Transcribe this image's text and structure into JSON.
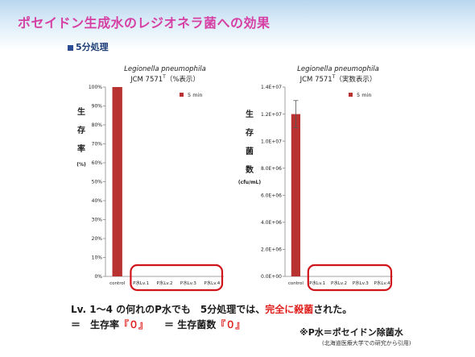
{
  "header": {
    "title": "ポセイドン生成水のレジオネラ菌への効果",
    "subtitle": "5分処理"
  },
  "charts": [
    {
      "organism": "Legionella pneumophila",
      "strain": "JCM 7571",
      "strain_sup": "T",
      "strain_note": "（%表示）",
      "ylabel_lines": [
        "生",
        "存",
        "率"
      ],
      "yunit": "(%)",
      "legend": "5 min"
    },
    {
      "organism": "Legionella pneumophila",
      "strain": "JCM 7571",
      "strain_sup": "T",
      "strain_note": "（実数表示）",
      "ylabel_lines": [
        "生",
        "存",
        "菌",
        "数"
      ],
      "yunit": "(cfu/mL)",
      "legend": "5 min"
    }
  ],
  "chart_data": [
    {
      "type": "bar",
      "categories": [
        "control",
        "P水Lv.1",
        "P水Lv.2",
        "P水Lv.3",
        "P水Lv.4"
      ],
      "series": [
        {
          "name": "5 min",
          "values": [
            100,
            0,
            0,
            0,
            0
          ]
        }
      ],
      "ylim": [
        0,
        100
      ],
      "yticks": [
        "0%",
        "10%",
        "20%",
        "30%",
        "40%",
        "50%",
        "60%",
        "70%",
        "80%",
        "90%",
        "100%"
      ],
      "grid": false,
      "legend_position": "top-right",
      "bar_color": "#b83232",
      "highlight_color": "#d0141a"
    },
    {
      "type": "bar",
      "categories": [
        "control",
        "P水Lv.1",
        "P水Lv.2",
        "P水Lv.3",
        "P水Lv.4"
      ],
      "series": [
        {
          "name": "5 min",
          "values": [
            12000000,
            0,
            0,
            0,
            0
          ],
          "error": [
            1000000,
            0,
            0,
            0,
            0
          ]
        }
      ],
      "ylim": [
        0,
        14000000
      ],
      "yticks": [
        "0.0E+00",
        "2.0E+06",
        "4.0E+06",
        "6.0E+06",
        "8.0E+06",
        "1.0E+07",
        "1.2E+07",
        "1.4E+07"
      ],
      "grid": false,
      "legend_position": "top-right",
      "bar_color": "#b83232",
      "highlight_color": "#d0141a"
    }
  ],
  "notes": {
    "line1_prefix": "Lv. 1～4 の何れのP水でも　5分処理では、",
    "line1_emph": "完全に殺菌",
    "line1_suffix": "された。",
    "line2_a_prefix": "＝　生存率",
    "line2_a_emph": "『０』",
    "line2_b_prefix": "＝ 生存菌数",
    "line2_b_emph": "『０』",
    "footnote": "※P水＝ポセイドン除菌水",
    "source": "(北海道医療大学での研究から引用)"
  }
}
